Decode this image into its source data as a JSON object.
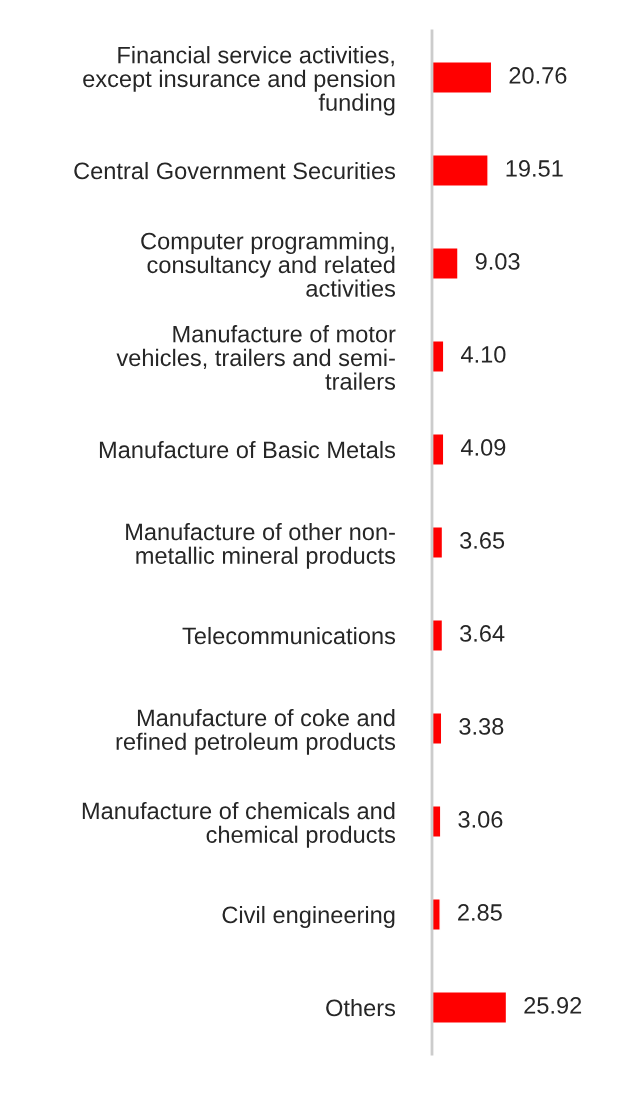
{
  "chart_data": {
    "type": "bar",
    "orientation": "horizontal",
    "relative": false,
    "categories": [
      "Financial service activities,\nexcept insurance and pension\nfunding",
      "Central Government Securities",
      "Computer programming,\nconsultancy and related\nactivities",
      "Manufacture of motor\nvehicles, trailers and semi-\ntrailers",
      "Manufacture of Basic Metals",
      "Manufacture of other non-\nmetallic mineral products",
      "Telecommunications",
      "Manufacture of coke and\nrefined petroleum products",
      "Manufacture of chemicals and\nchemical products",
      "Civil engineering",
      "Others"
    ],
    "values": [
      20.76,
      19.51,
      9.03,
      4.1,
      4.09,
      3.65,
      3.64,
      3.38,
      3.06,
      2.85,
      25.92
    ],
    "value_labels": [
      "20.76",
      "19.51",
      "9.03",
      "4.10",
      "4.09",
      "3.65",
      "3.64",
      "3.38",
      "3.06",
      "2.85",
      "25.92"
    ],
    "color": "#ff0000",
    "grid": false,
    "legend": false
  }
}
